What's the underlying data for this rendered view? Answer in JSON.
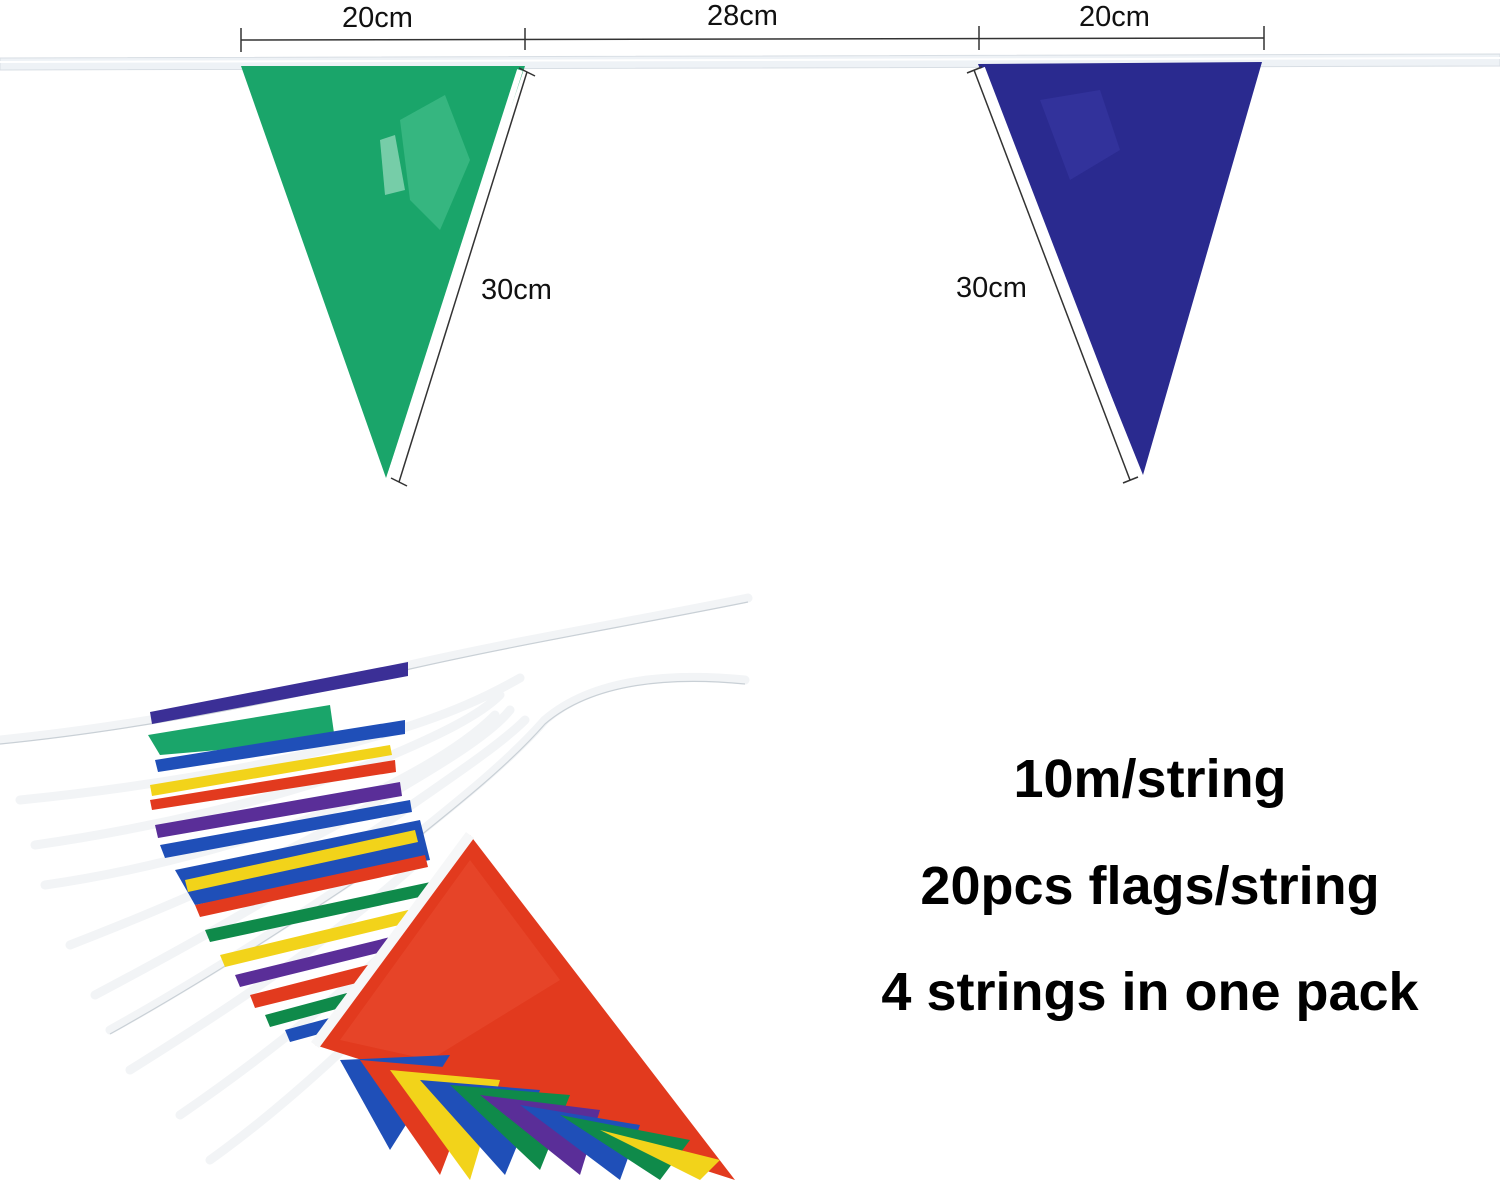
{
  "dimensions": {
    "flag_width_left": "20cm",
    "gap": "28cm",
    "flag_width_right": "20cm",
    "flag_height_left": "30cm",
    "flag_height_right": "30cm"
  },
  "specs": {
    "length": "10m/string",
    "flags_per_string": "20pcs flags/string",
    "strings_per_pack": "4 strings in one pack"
  },
  "colors": {
    "green": "#1aa56a",
    "blue": "#2a2a8f",
    "red": "#e23a1e",
    "yellow": "#f2d31a",
    "purple": "#5a2e98",
    "royal_blue": "#1f4fb8",
    "dark_green": "#0f8a4a",
    "string": "#f4f6f8"
  }
}
